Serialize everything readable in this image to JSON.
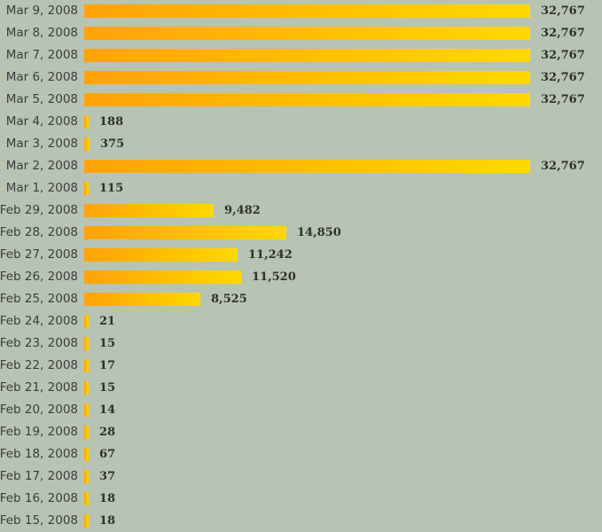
{
  "chart_data": {
    "type": "bar",
    "orientation": "horizontal",
    "title": "",
    "xlabel": "",
    "ylabel": "",
    "xlim": [
      0,
      32767
    ],
    "grid": false,
    "bar_color_start": "#ffa20a",
    "bar_color_end": "#ffd800",
    "categories": [
      "Mar 9, 2008",
      "Mar 8, 2008",
      "Mar 7, 2008",
      "Mar 6, 2008",
      "Mar 5, 2008",
      "Mar 4, 2008",
      "Mar 3, 2008",
      "Mar 2, 2008",
      "Mar 1, 2008",
      "Feb 29, 2008",
      "Feb 28, 2008",
      "Feb 27, 2008",
      "Feb 26, 2008",
      "Feb 25, 2008",
      "Feb 24, 2008",
      "Feb 23, 2008",
      "Feb 22, 2008",
      "Feb 21, 2008",
      "Feb 20, 2008",
      "Feb 19, 2008",
      "Feb 18, 2008",
      "Feb 17, 2008",
      "Feb 16, 2008",
      "Feb 15, 2008"
    ],
    "values": [
      32767,
      32767,
      32767,
      32767,
      32767,
      188,
      375,
      32767,
      115,
      9482,
      14850,
      11242,
      11520,
      8525,
      21,
      15,
      17,
      15,
      14,
      28,
      67,
      37,
      18,
      18
    ],
    "value_labels": [
      "32,767",
      "32,767",
      "32,767",
      "32,767",
      "32,767",
      "188",
      "375",
      "32,767",
      "115",
      "9,482",
      "14,850",
      "11,242",
      "11,520",
      "8,525",
      "21",
      "15",
      "17",
      "15",
      "14",
      "28",
      "67",
      "37",
      "18",
      "18"
    ]
  }
}
